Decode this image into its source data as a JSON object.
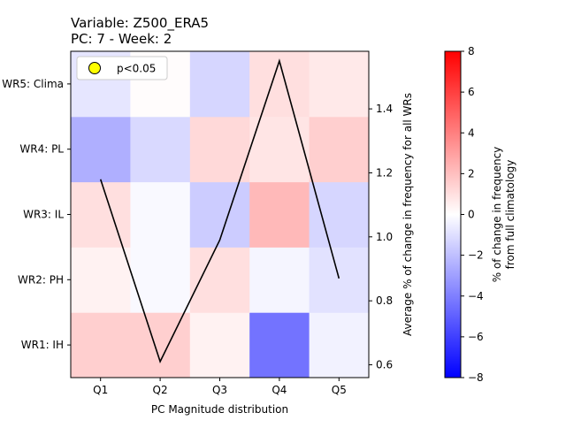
{
  "chart_data": {
    "type": "heatmap",
    "title_lines": [
      "Variable: Z500_ERA5",
      "PC: 7 - Week: 2"
    ],
    "xlabel": "PC Magnitude distribution",
    "x_categories": [
      "Q1",
      "Q2",
      "Q3",
      "Q4",
      "Q5"
    ],
    "y_categories": [
      "WR1: IH",
      "WR2: PH",
      "WR3: IL",
      "WR4: PL",
      "WR5: Clima"
    ],
    "heatmap_values": [
      [
        1.5,
        1.5,
        0.4,
        -4.4,
        -0.4
      ],
      [
        0.4,
        -0.2,
        1.0,
        -0.3,
        -0.9
      ],
      [
        1.0,
        -0.2,
        -1.6,
        2.2,
        -1.3
      ],
      [
        -2.5,
        -1.2,
        1.2,
        0.8,
        1.5
      ],
      [
        -0.8,
        0.1,
        -1.3,
        1.0,
        0.7
      ]
    ],
    "line_series": {
      "x": [
        "Q1",
        "Q2",
        "Q3",
        "Q4",
        "Q5"
      ],
      "values": [
        1.18,
        0.61,
        0.99,
        1.55,
        0.87
      ],
      "color": "#000000"
    },
    "right_ylabel": "Average % of change in frequency for all WRs",
    "right_ylim": [
      0.56,
      1.58
    ],
    "right_yticks": [
      "0.6",
      "0.8",
      "1.0",
      "1.2",
      "1.4"
    ],
    "colorbar": {
      "label_lines": [
        "% of change in frequency",
        "from full climatology"
      ],
      "range": [
        -8,
        8
      ],
      "ticks": [
        "8",
        "6",
        "4",
        "2",
        "0",
        "−2",
        "−4",
        "−6",
        "−8"
      ],
      "colormap": "bwr",
      "low_color": "#0000ff",
      "mid_color": "#ffffff",
      "high_color": "#ff0000"
    },
    "legend": {
      "placement": "upper-left",
      "label": "p<0.05",
      "marker_color": "#ffff00"
    }
  }
}
